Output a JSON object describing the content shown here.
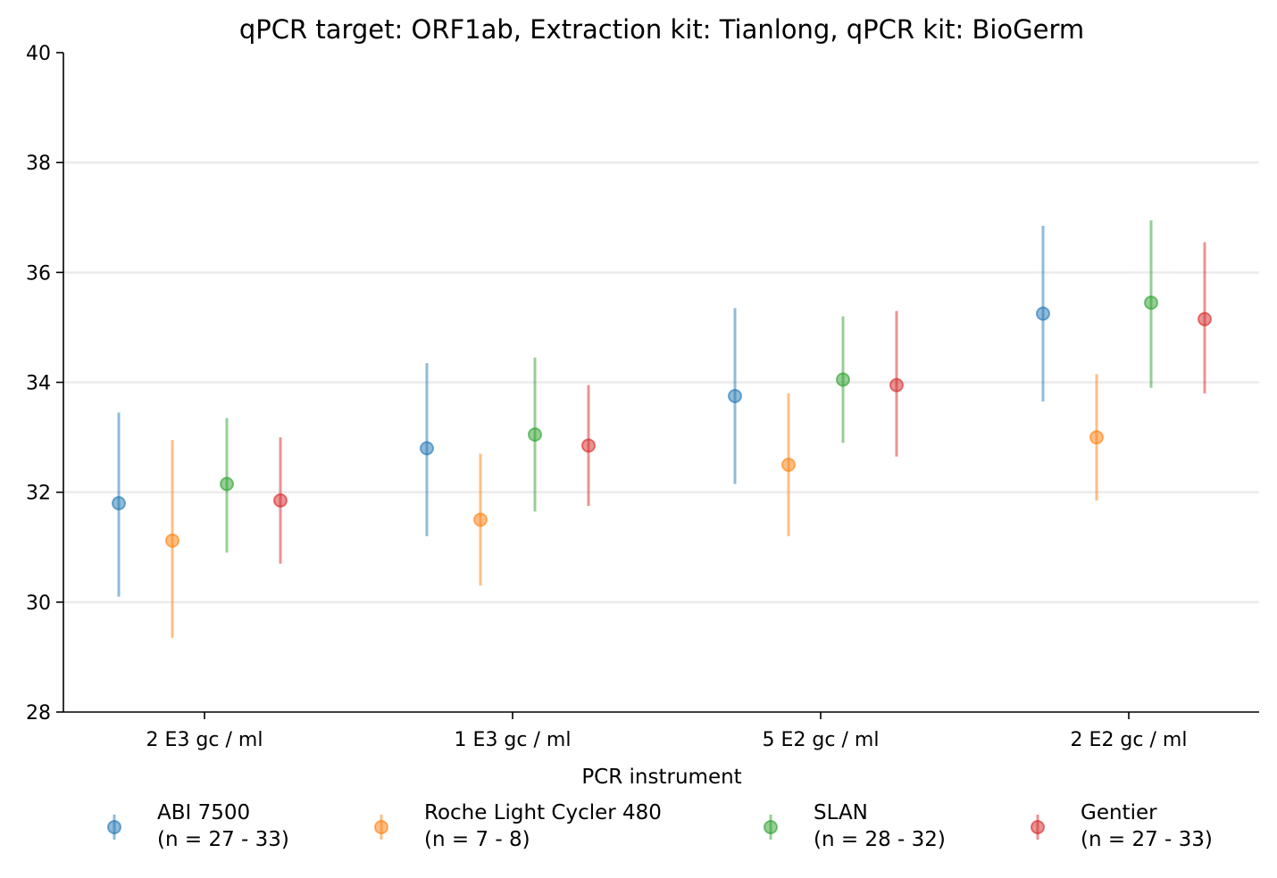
{
  "chart_data": {
    "type": "scatter",
    "title": "qPCR target: ORF1ab, Extraction kit: Tianlong, qPCR kit: BioGerm",
    "xlabel": "PCR instrument",
    "ylabel": "",
    "ylim": [
      28,
      40
    ],
    "yticks": [
      "28",
      "30",
      "32",
      "34",
      "36",
      "38",
      "40"
    ],
    "categories": [
      "2 E3 gc / ml",
      "1 E3 gc / ml",
      "5 E2 gc / ml",
      "2 E2 gc / ml"
    ],
    "grid": "horizontal",
    "legend_placement": "bottom",
    "series": [
      {
        "name": "ABI 7500",
        "n_label": "(n = 27 - 33)",
        "color": "#1f77b4",
        "values": [
          31.8,
          32.8,
          33.75,
          35.25
        ],
        "lower": [
          30.1,
          31.2,
          32.15,
          33.65
        ],
        "upper": [
          33.45,
          34.35,
          35.35,
          36.85
        ]
      },
      {
        "name": "Roche Light Cycler 480",
        "n_label": "(n = 7 - 8)",
        "color": "#ff7f0e",
        "values": [
          31.12,
          31.5,
          32.5,
          33.0
        ],
        "lower": [
          29.35,
          30.3,
          31.2,
          31.85
        ],
        "upper": [
          32.95,
          32.7,
          33.8,
          34.15
        ]
      },
      {
        "name": "SLAN",
        "n_label": "(n = 28 - 32)",
        "color": "#2ca02c",
        "values": [
          32.15,
          33.05,
          34.05,
          35.45
        ],
        "lower": [
          30.9,
          31.65,
          32.9,
          33.9
        ],
        "upper": [
          33.35,
          34.45,
          35.2,
          36.95
        ]
      },
      {
        "name": "Gentier",
        "n_label": "(n = 27 - 33)",
        "color": "#d62728",
        "values": [
          31.85,
          32.85,
          33.95,
          35.15
        ],
        "lower": [
          30.7,
          31.75,
          32.65,
          33.8
        ],
        "upper": [
          33.0,
          33.95,
          35.3,
          36.55
        ]
      }
    ]
  }
}
